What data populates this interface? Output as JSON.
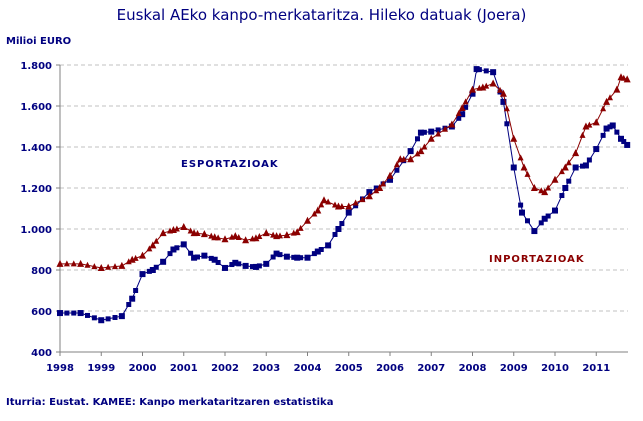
{
  "chart_data": {
    "type": "line",
    "title": "Euskal AEko kanpo-merkataritza. Hileko datuak (Joera)",
    "ylabel": "Milioi EURO",
    "source": "Iturria: Eustat. KAMEE: Kanpo merkataritzaren estatistika",
    "ylim": [
      400,
      1800
    ],
    "y_ticks": [
      "400",
      "600",
      "800",
      "1.000",
      "1.200",
      "1.400",
      "1.600",
      "1.800"
    ],
    "y_tick_values": [
      400,
      600,
      800,
      1000,
      1200,
      1400,
      1600,
      1800
    ],
    "x_ticks": [
      "1998",
      "1999",
      "2000",
      "2001",
      "2002",
      "2003",
      "2004",
      "2005",
      "2006",
      "2007",
      "2008",
      "2009",
      "2010",
      "2011"
    ],
    "xlim": [
      1998,
      2011.75
    ],
    "grid": "horizontal dashed",
    "series": [
      {
        "name": "ESPORTAZIOAK",
        "color": "#000080",
        "marker": "square",
        "x": [
          1998,
          1998.5,
          1999,
          1999.5,
          1999.75,
          2000,
          2000.25,
          2000.5,
          2000.75,
          2001,
          2001.25,
          2001.5,
          2001.75,
          2002,
          2002.25,
          2002.5,
          2002.75,
          2003,
          2003.25,
          2003.5,
          2003.75,
          2004,
          2004.25,
          2004.5,
          2004.75,
          2005,
          2005.5,
          2006,
          2006.5,
          2006.75,
          2007,
          2007.5,
          2007.75,
          2008,
          2008.1,
          2008.5,
          2008.75,
          2009,
          2009.2,
          2009.5,
          2009.75,
          2010,
          2010.25,
          2010.5,
          2010.75,
          2011,
          2011.25,
          2011.4,
          2011.6,
          2011.75
        ],
        "y": [
          590,
          590,
          555,
          575,
          660,
          780,
          800,
          840,
          900,
          925,
          860,
          870,
          850,
          810,
          835,
          820,
          815,
          830,
          880,
          865,
          860,
          860,
          890,
          920,
          1000,
          1080,
          1180,
          1240,
          1380,
          1470,
          1475,
          1500,
          1560,
          1660,
          1780,
          1765,
          1620,
          1300,
          1080,
          990,
          1050,
          1090,
          1200,
          1300,
          1310,
          1390,
          1490,
          1505,
          1440,
          1410
        ]
      },
      {
        "name": "INPORTAZIOAK",
        "color": "#8B0000",
        "marker": "triangle",
        "x": [
          1998,
          1998.5,
          1999,
          1999.5,
          1999.75,
          2000,
          2000.25,
          2000.5,
          2000.75,
          2001,
          2001.25,
          2001.5,
          2001.75,
          2002,
          2002.25,
          2002.5,
          2002.75,
          2003,
          2003.25,
          2003.5,
          2003.75,
          2004,
          2004.25,
          2004.4,
          2004.75,
          2005,
          2005.5,
          2005.75,
          2006,
          2006.25,
          2006.5,
          2006.75,
          2007,
          2007.5,
          2007.75,
          2008,
          2008.25,
          2008.5,
          2008.75,
          2009,
          2009.25,
          2009.5,
          2009.75,
          2010,
          2010.25,
          2010.5,
          2010.75,
          2011,
          2011.25,
          2011.5,
          2011.6,
          2011.75
        ],
        "y": [
          830,
          830,
          810,
          820,
          850,
          870,
          920,
          980,
          995,
          1010,
          980,
          975,
          960,
          950,
          965,
          945,
          955,
          980,
          965,
          970,
          985,
          1040,
          1090,
          1140,
          1110,
          1110,
          1160,
          1200,
          1260,
          1340,
          1340,
          1380,
          1440,
          1510,
          1590,
          1680,
          1690,
          1710,
          1660,
          1440,
          1300,
          1200,
          1180,
          1240,
          1300,
          1370,
          1500,
          1520,
          1620,
          1680,
          1740,
          1730
        ]
      }
    ]
  }
}
